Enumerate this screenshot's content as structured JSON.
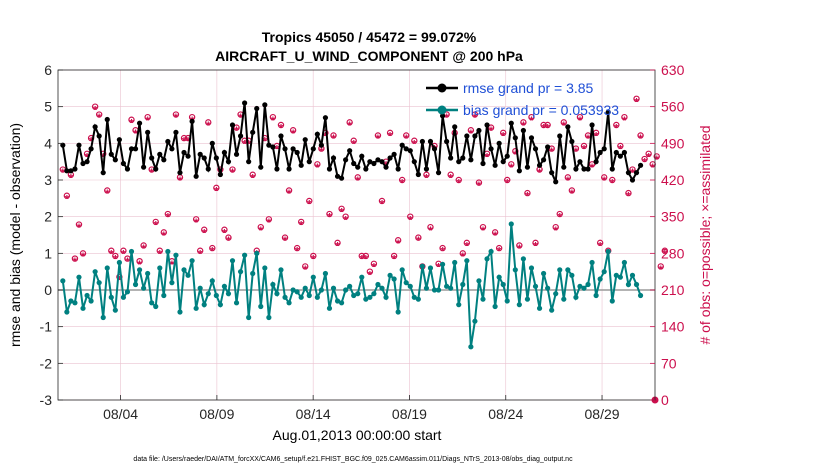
{
  "chart_data": {
    "type": "line",
    "title_line1": "Tropics 45050 / 45472 = 99.072%",
    "title_line2": "AIRCRAFT_U_WIND_COMPONENT @ 200 hPa",
    "ylabel_left": "rmse and bias (model - observation)",
    "ylabel_right": "# of obs: o=possible; ×=assimilated",
    "xlabel": "Aug.01,2013 00:00:00 start",
    "footnote": "data file: /Users/raeder/DAI/ATM_forcXX/CAM6_setup/f.e21.FHIST_BGC.f09_025.CAM6assim.011/Diags_NTrS_2013-08/obs_diag_output.nc",
    "ylim_left": [
      -3,
      6
    ],
    "ylim_right": [
      0,
      630
    ],
    "xlim": [
      0.75,
      31.75
    ],
    "grid": true,
    "left_ticks": [
      "-3",
      "-2",
      "-1",
      "0",
      "1",
      "2",
      "3",
      "4",
      "5",
      "6"
    ],
    "right_ticks": [
      "0",
      "70",
      "140",
      "210",
      "280",
      "350",
      "420",
      "490",
      "560",
      "630"
    ],
    "x_ticks": [
      {
        "x": 4,
        "label": "08/04"
      },
      {
        "x": 9,
        "label": "08/09"
      },
      {
        "x": 14,
        "label": "08/14"
      },
      {
        "x": 19,
        "label": "08/19"
      },
      {
        "x": 24,
        "label": "08/24"
      },
      {
        "x": 29,
        "label": "08/29"
      }
    ],
    "legend": [
      {
        "label": "rmse grand pr = 3.85",
        "color": "#000000"
      },
      {
        "label": "bias grand pr = 0.053933",
        "color": "#008080"
      }
    ],
    "legend_position": "top-right",
    "rmse": [
      3.95,
      3.25,
      3.25,
      3.3,
      3.95,
      3.45,
      3.5,
      3.85,
      4.45,
      4.2,
      3.2,
      4.65,
      3.7,
      3.55,
      4.1,
      3.45,
      3.3,
      3.85,
      3.85,
      4.55,
      3.35,
      4.3,
      3.6,
      3.3,
      3.7,
      3.55,
      4.05,
      3.85,
      4.3,
      3.2,
      3.75,
      3.65,
      4.6,
      3.1,
      3.7,
      3.6,
      3.3,
      4.0,
      3.6,
      3.15,
      3.75,
      3.5,
      4.5,
      3.7,
      4.2,
      5.1,
      3.5,
      4.3,
      4.95,
      3.35,
      5.05,
      3.95,
      3.9,
      3.3,
      4.2,
      3.85,
      3.3,
      3.85,
      3.75,
      3.4,
      4.1,
      3.5,
      3.85,
      4.25,
      3.95,
      4.7,
      3.3,
      3.6,
      3.1,
      3.05,
      3.55,
      3.8,
      3.45,
      3.35,
      3.65,
      3.3,
      3.5,
      3.45,
      3.55,
      3.5,
      3.35,
      3.6,
      3.7,
      3.3,
      3.95,
      3.85,
      3.8,
      3.5,
      3.15,
      4.05,
      3.3,
      4.05,
      3.85,
      3.2,
      4.75,
      4.05,
      3.6,
      4.45,
      3.5,
      3.6,
      4.2,
      3.55,
      4.2,
      4.35,
      3.45,
      4.5,
      3.85,
      3.4,
      4.0,
      3.5,
      3.65,
      4.55,
      4.15,
      3.25,
      4.35,
      3.35,
      4.15,
      3.85,
      3.4,
      3.55,
      3.9,
      3.2,
      2.95,
      4.2,
      3.35,
      4.45,
      4.05,
      3.3,
      3.5,
      3.3,
      3.3,
      4.5,
      3.5,
      3.75,
      3.85,
      4.85,
      3.3,
      3.75,
      3.65,
      3.75,
      3.2,
      3.0,
      3.2,
      3.4
    ],
    "bias": [
      0.25,
      -0.6,
      -0.3,
      -0.35,
      0.35,
      -0.5,
      -0.15,
      -0.3,
      0.5,
      0.2,
      -0.75,
      0.6,
      -0.2,
      -0.55,
      0.75,
      -0.2,
      -0.05,
      1.05,
      0.15,
      0.55,
      0.05,
      0.45,
      -0.35,
      -0.45,
      0.6,
      -0.15,
      1.05,
      0.2,
      0.95,
      -0.6,
      0.55,
      0.4,
      0.8,
      -0.5,
      0.05,
      -0.4,
      -0.1,
      0.25,
      -0.15,
      -0.4,
      0.1,
      -0.1,
      0.8,
      -0.35,
      0.5,
      0.95,
      -0.75,
      0.45,
      1.0,
      -0.45,
      0.6,
      -0.75,
      0.15,
      -0.1,
      0.55,
      -0.2,
      -0.35,
      0.0,
      -0.05,
      -0.2,
      0.05,
      -0.15,
      0.35,
      -0.2,
      0.0,
      0.45,
      -0.5,
      0.05,
      -0.3,
      -0.35,
      0.0,
      0.1,
      -0.15,
      -0.1,
      0.35,
      -0.25,
      -0.2,
      -0.1,
      0.15,
      0.05,
      -0.2,
      0.4,
      0.3,
      -0.6,
      0.55,
      0.2,
      0.1,
      -0.2,
      -0.25,
      0.65,
      0.05,
      0.6,
      0.0,
      0.0,
      0.7,
      0.1,
      0.05,
      0.75,
      -0.4,
      0.15,
      0.8,
      -1.55,
      -0.85,
      0.25,
      -0.25,
      0.85,
      1.05,
      -0.45,
      0.35,
      0.15,
      -0.3,
      1.8,
      0.55,
      -0.4,
      0.85,
      -0.25,
      0.6,
      0.1,
      -0.5,
      0.45,
      0.05,
      -0.55,
      -0.1,
      0.55,
      -0.25,
      0.55,
      0.4,
      -0.2,
      0.1,
      0.05,
      0.15,
      0.75,
      -0.15,
      0.3,
      0.5,
      1.05,
      -0.3,
      0.4,
      0.35,
      0.75,
      0.15,
      0.4,
      0.15,
      -0.15
    ],
    "obs_possible": [
      440,
      390,
      430,
      270,
      335,
      280,
      470,
      500,
      560,
      545,
      470,
      400,
      285,
      275,
      235,
      285,
      270,
      535,
      515,
      265,
      295,
      540,
      440,
      340,
      285,
      320,
      355,
      265,
      545,
      425,
      500,
      500,
      540,
      345,
      285,
      325,
      530,
      290,
      405,
      440,
      325,
      310,
      440,
      520,
      545,
      495,
      495,
      430,
      285,
      330,
      500,
      345,
      540,
      485,
      525,
      310,
      400,
      515,
      290,
      340,
      255,
      380,
      275,
      450,
      480,
      510,
      355,
      505,
      300,
      365,
      350,
      530,
      495,
      425,
      275,
      275,
      245,
      260,
      505,
      380,
      455,
      510,
      275,
      305,
      420,
      505,
      350,
      495,
      310,
      255,
      430,
      330,
      485,
      260,
      290,
      545,
      430,
      510,
      420,
      280,
      300,
      515,
      545,
      415,
      330,
      470,
      520,
      320,
      290,
      510,
      420,
      450,
      475,
      295,
      530,
      395,
      540,
      300,
      440,
      525,
      525,
      480,
      330,
      355,
      530,
      425,
      400,
      480,
      540,
      485,
      505,
      450,
      510,
      300,
      425,
      285,
      420,
      525,
      485,
      540,
      395,
      440,
      575,
      505,
      460,
      470,
      450,
      465,
      255,
      285
    ],
    "obs_assim": [
      435,
      385,
      425,
      265,
      330,
      275,
      465,
      495,
      555,
      540,
      465,
      395,
      280,
      270,
      230,
      280,
      265,
      530,
      510,
      260,
      290,
      535,
      435,
      335,
      280,
      315,
      350,
      260,
      540,
      420,
      495,
      495,
      535,
      340,
      280,
      320,
      525,
      285,
      400,
      435,
      320,
      305,
      435,
      515,
      540,
      490,
      490,
      425,
      280,
      325,
      495,
      340,
      535,
      480,
      520,
      305,
      395,
      510,
      285,
      335,
      250,
      375,
      270,
      445,
      475,
      505,
      350,
      500,
      295,
      360,
      345,
      525,
      490,
      420,
      270,
      270,
      240,
      255,
      500,
      375,
      450,
      505,
      270,
      300,
      415,
      500,
      345,
      490,
      305,
      250,
      425,
      325,
      480,
      255,
      285,
      540,
      425,
      505,
      415,
      275,
      295,
      510,
      540,
      410,
      325,
      465,
      515,
      315,
      285,
      505,
      415,
      445,
      470,
      290,
      525,
      390,
      535,
      295,
      435,
      520,
      520,
      475,
      325,
      350,
      525,
      420,
      395,
      475,
      535,
      480,
      500,
      445,
      505,
      295,
      420,
      280,
      415,
      520,
      480,
      535,
      390,
      435,
      570,
      500,
      455,
      465,
      445,
      460,
      250,
      280
    ]
  }
}
